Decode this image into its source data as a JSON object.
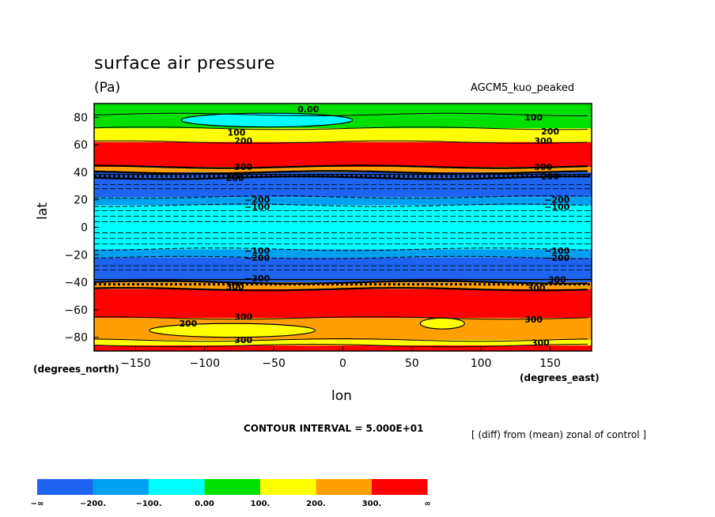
{
  "title": "surface air pressure",
  "units": "(Pa)",
  "model_label": "AGCM5_kuo_peaked",
  "contour_interval": "CONTOUR INTERVAL = 5.000E+01",
  "note": "[ (diff) from (mean) zonal of control ]",
  "colors": {
    "lt_m200": "#1e64f0",
    "m200_m100": "#00a0f0",
    "m100_0": "#00ffff",
    "0_100": "#00e000",
    "100_200": "#ffff00",
    "200_300": "#ffa000",
    "gt_300": "#ff0000"
  },
  "chart_data": {
    "type": "heatmap",
    "xlabel": "lon",
    "xlabel_units": "(degrees_east)",
    "ylabel": "lat",
    "ylabel_units": "(degrees_north)",
    "xlim": [
      -180,
      180
    ],
    "ylim": [
      -90,
      90
    ],
    "x_ticks": [
      {
        "value": -150,
        "label": "−150"
      },
      {
        "value": -100,
        "label": "−100"
      },
      {
        "value": -50,
        "label": "−50"
      },
      {
        "value": 0,
        "label": "0"
      },
      {
        "value": 50,
        "label": "50"
      },
      {
        "value": 100,
        "label": "100"
      },
      {
        "value": 150,
        "label": "150"
      }
    ],
    "y_ticks": [
      {
        "value": 80,
        "label": "80"
      },
      {
        "value": 60,
        "label": "60"
      },
      {
        "value": 40,
        "label": "40"
      },
      {
        "value": 20,
        "label": "20"
      },
      {
        "value": 0,
        "label": "0"
      },
      {
        "value": -20,
        "label": "−20"
      },
      {
        "value": -40,
        "label": "−40"
      },
      {
        "value": -60,
        "label": "−60"
      },
      {
        "value": -80,
        "label": "−80"
      }
    ],
    "bands": [
      {
        "lat_from": 90,
        "lat_to": 82,
        "class": "0_100"
      },
      {
        "lat_from": 82,
        "lat_to": 72,
        "class": "0_100"
      },
      {
        "lat_from": 72,
        "lat_to": 62,
        "class": "100_200"
      },
      {
        "lat_from": 62,
        "lat_to": 44,
        "class": "gt_300"
      },
      {
        "lat_from": 44,
        "lat_to": 40,
        "class": "200_300"
      },
      {
        "lat_from": 40,
        "lat_to": 36,
        "class": "lt_m200"
      },
      {
        "lat_from": 36,
        "lat_to": 22,
        "class": "lt_m200"
      },
      {
        "lat_from": 22,
        "lat_to": 16,
        "class": "m200_m100"
      },
      {
        "lat_from": 16,
        "lat_to": -16,
        "class": "m100_0"
      },
      {
        "lat_from": -16,
        "lat_to": -22,
        "class": "m200_m100"
      },
      {
        "lat_from": -22,
        "lat_to": -40,
        "class": "lt_m200"
      },
      {
        "lat_from": -40,
        "lat_to": -45,
        "class": "200_300"
      },
      {
        "lat_from": -45,
        "lat_to": -66,
        "class": "gt_300"
      },
      {
        "lat_from": -66,
        "lat_to": -82,
        "class": "200_300"
      },
      {
        "lat_from": -82,
        "lat_to": -86,
        "class": "100_200"
      },
      {
        "lat_from": -86,
        "lat_to": -90,
        "class": "gt_300"
      }
    ],
    "blobs": [
      {
        "lon": -55,
        "lat": 78,
        "lon_radius": 62,
        "lat_radius": 5,
        "class": "m100_0"
      },
      {
        "lon": -80,
        "lat": -75,
        "lon_radius": 60,
        "lat_radius": 5,
        "class": "100_200"
      },
      {
        "lon": 72,
        "lat": -70,
        "lon_radius": 16,
        "lat_radius": 4,
        "class": "100_200"
      }
    ],
    "contour_labels": [
      {
        "text": "0.00",
        "lon": -25,
        "lat": 86
      },
      {
        "text": "100",
        "lon": 138,
        "lat": 80
      },
      {
        "text": "200",
        "lon": 150,
        "lat": 70
      },
      {
        "text": "300",
        "lon": 145,
        "lat": 63
      },
      {
        "text": "100",
        "lon": -77,
        "lat": 69
      },
      {
        "text": "200",
        "lon": -72,
        "lat": 63
      },
      {
        "text": "300",
        "lon": -72,
        "lat": 44
      },
      {
        "text": "200",
        "lon": -78,
        "lat": 36
      },
      {
        "text": "300",
        "lon": 145,
        "lat": 44
      },
      {
        "text": "200",
        "lon": 150,
        "lat": 37
      },
      {
        "text": "−200",
        "lon": -62,
        "lat": 20
      },
      {
        "text": "−100",
        "lon": -62,
        "lat": 15
      },
      {
        "text": "−200",
        "lon": 155,
        "lat": 20
      },
      {
        "text": "−100",
        "lon": 155,
        "lat": 15
      },
      {
        "text": "−100",
        "lon": -62,
        "lat": -17
      },
      {
        "text": "−200",
        "lon": -62,
        "lat": -22
      },
      {
        "text": "−100",
        "lon": 155,
        "lat": -17
      },
      {
        "text": "−200",
        "lon": 155,
        "lat": -22
      },
      {
        "text": "−300",
        "lon": -62,
        "lat": -37
      },
      {
        "text": "300",
        "lon": -78,
        "lat": -43
      },
      {
        "text": "300",
        "lon": 155,
        "lat": -38
      },
      {
        "text": "300",
        "lon": 140,
        "lat": -44
      },
      {
        "text": "200",
        "lon": -112,
        "lat": -70
      },
      {
        "text": "300",
        "lon": -72,
        "lat": -65
      },
      {
        "text": "300",
        "lon": 138,
        "lat": -67
      },
      {
        "text": "300",
        "lon": -72,
        "lat": -82
      },
      {
        "text": "300",
        "lon": 143,
        "lat": -84
      }
    ],
    "legend": {
      "boxes": [
        "lt_m200",
        "m200_m100",
        "m100_0",
        "0_100",
        "100_200",
        "200_300",
        "gt_300"
      ],
      "labels": [
        "−∞",
        "−200.",
        "−100.",
        "0.00",
        "100.",
        "200.",
        "300.",
        "∞"
      ]
    }
  }
}
